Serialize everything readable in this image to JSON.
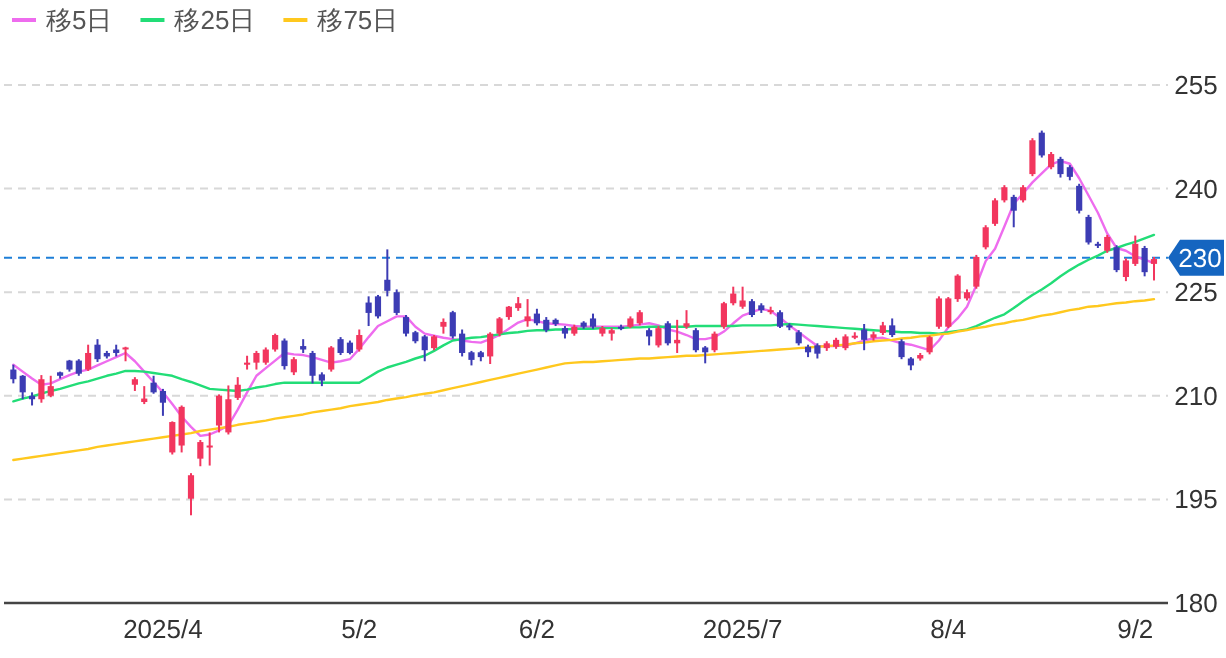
{
  "chart_data": {
    "type": "candlestick",
    "categories": [
      null,
      null,
      null,
      null,
      null,
      null,
      null,
      null,
      null,
      null,
      null,
      null,
      null,
      null,
      null,
      null,
      "2025/4",
      null,
      null,
      null,
      null,
      null,
      null,
      null,
      null,
      null,
      null,
      null,
      null,
      null,
      null,
      null,
      null,
      null,
      null,
      null,
      null,
      "5/2",
      null,
      null,
      null,
      null,
      null,
      null,
      null,
      null,
      null,
      null,
      null,
      null,
      null,
      null,
      null,
      null,
      null,
      null,
      "6/2",
      null,
      null,
      null,
      null,
      null,
      null,
      null,
      null,
      null,
      null,
      null,
      null,
      null,
      null,
      null,
      null,
      null,
      null,
      null,
      null,
      null,
      "2025/7",
      null,
      null,
      null,
      null,
      null,
      null,
      null,
      null,
      null,
      null,
      null,
      null,
      null,
      null,
      null,
      null,
      null,
      null,
      null,
      null,
      null,
      "8/4",
      null,
      null,
      null,
      null,
      null,
      null,
      null,
      null,
      null,
      null,
      null,
      null,
      null,
      null,
      null,
      null,
      null,
      null,
      null,
      "9/2",
      null,
      null
    ],
    "ohlc": [
      [
        213.8,
        214.5,
        211.8,
        212.4
      ],
      [
        212.9,
        213,
        209.5,
        210.5
      ],
      [
        210,
        210.5,
        208.6,
        209.5
      ],
      [
        209.5,
        213,
        209,
        212.4
      ],
      [
        210,
        212.9,
        209.8,
        211.4
      ],
      [
        213.4,
        213.5,
        212.5,
        212.9
      ],
      [
        215.1,
        215.2,
        213.5,
        213.8
      ],
      [
        215.1,
        215.3,
        212.9,
        213.2
      ],
      [
        213.8,
        217.4,
        213.6,
        216.2
      ],
      [
        217.4,
        218.2,
        214.9,
        215.3
      ],
      [
        216.2,
        216.5,
        215.4,
        215.7
      ],
      [
        216.7,
        217.4,
        215.7,
        216.2
      ],
      [
        216.9,
        217.1,
        215,
        217
      ],
      [
        211.6,
        212.7,
        210.7,
        212.4
      ],
      [
        209.1,
        211.4,
        208.8,
        209.6
      ],
      [
        211.9,
        212.9,
        210.3,
        210.5
      ],
      [
        210.7,
        211,
        207.1,
        209
      ],
      [
        201.8,
        206.3,
        201.5,
        206.2
      ],
      [
        202.8,
        208.6,
        201.8,
        208.4
      ],
      [
        195.1,
        198.8,
        192.7,
        198.5
      ],
      [
        200.9,
        203.6,
        199.8,
        203.3
      ],
      [
        202.7,
        204.7,
        199.9,
        202.8
      ],
      [
        205.7,
        210.2,
        204.7,
        210
      ],
      [
        204.7,
        211.5,
        204.4,
        209.5
      ],
      [
        209.7,
        212.7,
        209.4,
        211.6
      ],
      [
        214.5,
        215.8,
        213.8,
        214.8
      ],
      [
        214.8,
        216.5,
        213.8,
        216.2
      ],
      [
        214.8,
        217,
        214.5,
        216.7
      ],
      [
        216.7,
        219,
        216.4,
        218.8
      ],
      [
        218,
        218.3,
        213.8,
        214.3
      ],
      [
        213.4,
        215.6,
        213,
        215.3
      ],
      [
        217.2,
        218.2,
        216.2,
        216.7
      ],
      [
        216.2,
        216.5,
        211.8,
        212.9
      ],
      [
        213.1,
        213.4,
        211.4,
        212.2
      ],
      [
        213.8,
        217.2,
        213.5,
        217
      ],
      [
        218.2,
        218.5,
        215.9,
        216.2
      ],
      [
        217.7,
        218,
        216,
        216.2
      ],
      [
        216.7,
        219.6,
        216.4,
        218.8
      ],
      [
        223.5,
        224.4,
        220.1,
        222
      ],
      [
        224.4,
        224.6,
        221.2,
        221.5
      ],
      [
        226.8,
        231.2,
        224.4,
        225.2
      ],
      [
        225,
        225.4,
        221.7,
        222
      ],
      [
        221.4,
        221.7,
        218.6,
        219
      ],
      [
        219.2,
        219.4,
        217.6,
        217.9
      ],
      [
        218.6,
        218.8,
        215,
        216.6
      ],
      [
        216.9,
        218.8,
        216.6,
        218.6
      ],
      [
        220,
        221.2,
        219,
        220.7
      ],
      [
        222.1,
        222.3,
        218.3,
        218.6
      ],
      [
        219,
        219.6,
        215.7,
        216.2
      ],
      [
        216.3,
        216.5,
        214.4,
        215.2
      ],
      [
        216.3,
        216.5,
        215,
        215.6
      ],
      [
        215.7,
        219.2,
        214.6,
        219
      ],
      [
        219,
        221.4,
        218.6,
        221.2
      ],
      [
        221.4,
        223,
        221,
        222.9
      ],
      [
        222.7,
        224.3,
        222.3,
        223.4
      ],
      [
        220.8,
        224,
        220,
        221.5
      ],
      [
        221.9,
        222.6,
        220.2,
        220.5
      ],
      [
        221,
        221.4,
        219.2,
        219.5
      ],
      [
        221,
        221.2,
        220.1,
        220.4
      ],
      [
        219.8,
        220.1,
        218.3,
        219
      ],
      [
        219,
        220.3,
        218.7,
        220
      ],
      [
        220.6,
        220.8,
        219.7,
        220
      ],
      [
        221.2,
        221.9,
        219.7,
        220
      ],
      [
        219,
        220.1,
        218.6,
        219.8
      ],
      [
        219,
        219.8,
        218,
        219.5
      ],
      [
        220,
        220.3,
        219.5,
        219.8
      ],
      [
        220,
        221.5,
        219.8,
        221.2
      ],
      [
        220.5,
        222.4,
        220.2,
        222.1
      ],
      [
        219.5,
        219.8,
        217.3,
        218.6
      ],
      [
        217.3,
        220.1,
        217,
        219.8
      ],
      [
        220.5,
        220.8,
        217.3,
        217.6
      ],
      [
        217.6,
        221,
        216.2,
        218.1
      ],
      [
        220,
        222.4,
        219.7,
        220.5
      ],
      [
        219.5,
        219.8,
        216.3,
        216.6
      ],
      [
        217,
        217.2,
        214.7,
        216.3
      ],
      [
        216.6,
        219.3,
        216.3,
        219
      ],
      [
        220,
        223.6,
        219.7,
        223.4
      ],
      [
        223.4,
        225.8,
        223.1,
        224.8
      ],
      [
        222.9,
        225.8,
        222.6,
        223.8
      ],
      [
        223.7,
        224,
        221.4,
        221.7
      ],
      [
        223.1,
        223.4,
        222,
        222.4
      ],
      [
        222.3,
        222.9,
        221.8,
        222.4
      ],
      [
        222.1,
        222.4,
        219.8,
        220
      ],
      [
        220.2,
        220.5,
        219.5,
        219.9
      ],
      [
        219.2,
        219.5,
        217.3,
        217.6
      ],
      [
        217.1,
        217.4,
        215.6,
        216.3
      ],
      [
        217.3,
        217.6,
        215.4,
        216.1
      ],
      [
        216.9,
        217.9,
        216.5,
        217.6
      ],
      [
        217.1,
        218.4,
        216.8,
        218.1
      ],
      [
        216.9,
        218.9,
        216.6,
        218.6
      ],
      [
        218.5,
        219.2,
        218.2,
        218.7
      ],
      [
        219.6,
        220.4,
        216.6,
        218.1
      ],
      [
        218.4,
        219.3,
        218,
        218.9
      ],
      [
        219.1,
        220.7,
        218.8,
        220.2
      ],
      [
        220.2,
        221.2,
        218.5,
        218.8
      ],
      [
        217.9,
        218.2,
        215.3,
        215.6
      ],
      [
        215.4,
        215.6,
        213.7,
        214.4
      ],
      [
        215.4,
        216.2,
        215.1,
        215.9
      ],
      [
        216.3,
        218.7,
        216,
        218.5
      ],
      [
        220,
        224.4,
        219.7,
        224.1
      ],
      [
        220,
        224.3,
        219.8,
        224.1
      ],
      [
        224,
        227.6,
        223.6,
        227.4
      ],
      [
        224.1,
        225.4,
        223.8,
        225
      ],
      [
        225.8,
        230.4,
        225.5,
        230.1
      ],
      [
        231.5,
        234.7,
        231.2,
        234.4
      ],
      [
        234.9,
        238.6,
        234.6,
        238.3
      ],
      [
        238.3,
        240.5,
        238,
        240.2
      ],
      [
        238.8,
        239.1,
        234.4,
        236.8
      ],
      [
        238.3,
        240.5,
        238,
        240.2
      ],
      [
        242.1,
        247.3,
        241.8,
        247
      ],
      [
        248.1,
        248.4,
        244.5,
        244.8
      ],
      [
        243.1,
        245.3,
        242.8,
        245
      ],
      [
        244.3,
        244.6,
        241.6,
        242.1
      ],
      [
        243.1,
        243.4,
        241.2,
        241.7
      ],
      [
        240.4,
        240.7,
        236.4,
        236.8
      ],
      [
        235.9,
        236.2,
        231.9,
        232.2
      ],
      [
        232,
        232.3,
        231.4,
        231.8
      ],
      [
        231,
        233.3,
        230.7,
        233
      ],
      [
        231.5,
        231.8,
        227.9,
        228.2
      ],
      [
        227.2,
        229.9,
        226.6,
        229.6
      ],
      [
        229.1,
        233.2,
        228.8,
        232
      ],
      [
        231.4,
        231.7,
        227.3,
        227.9
      ],
      [
        229.1,
        230.1,
        226.7,
        229.8
      ]
    ],
    "series": [
      {
        "name": "移5日",
        "type": "line",
        "color": "#ee6cee",
        "values": [
          214.5,
          213.5,
          212.5,
          211.6,
          211.8,
          212.4,
          213,
          213.5,
          213.8,
          214.4,
          215,
          215.6,
          216.2,
          215,
          213.5,
          212,
          210.5,
          208.8,
          207,
          205.5,
          204.2,
          204.4,
          205,
          205.7,
          208,
          210.5,
          212.9,
          214,
          215.1,
          216.2,
          216,
          215.9,
          215.6,
          215.2,
          214.8,
          215,
          215.3,
          216.8,
          218.5,
          220.1,
          220.8,
          221.5,
          221.5,
          220,
          219,
          218.7,
          218.4,
          218.2,
          218,
          217.8,
          217.7,
          218.2,
          218.8,
          219.7,
          220.6,
          221.1,
          220.8,
          220.5,
          220.4,
          220.3,
          220.1,
          220,
          220,
          220,
          220,
          220,
          220.1,
          220.3,
          220.5,
          220.2,
          219.6,
          219.3,
          218.8,
          218.2,
          218.2,
          218.5,
          219.3,
          220.5,
          221.6,
          222.1,
          222.6,
          222.3,
          221.3,
          220.2,
          219.2,
          218.2,
          217.2,
          217.2,
          217.2,
          217.3,
          217.6,
          218,
          218.3,
          218.4,
          218,
          217.6,
          217.4,
          217,
          216.6,
          218,
          219.9,
          221.2,
          222.9,
          226,
          229.5,
          231.3,
          234.5,
          237.8,
          239.3,
          240.9,
          242.2,
          243.5,
          244,
          243.6,
          241.5,
          239,
          236.5,
          233.5,
          231.4,
          231,
          230.2,
          229.7,
          229.2
        ]
      },
      {
        "name": "移25日",
        "type": "line",
        "color": "#22dd77",
        "values": [
          209.2,
          209.6,
          209.9,
          210.3,
          210.7,
          211,
          211.4,
          211.8,
          212.1,
          212.5,
          212.9,
          213.2,
          213.6,
          213.6,
          213.5,
          213.3,
          213.1,
          212.9,
          212.4,
          212,
          211.5,
          211,
          210.9,
          210.8,
          210.7,
          210.9,
          211.2,
          211.4,
          211.7,
          211.9,
          211.9,
          211.9,
          211.9,
          211.9,
          211.9,
          211.9,
          211.9,
          211.9,
          212.7,
          213.5,
          214.1,
          214.5,
          214.9,
          215.4,
          215.8,
          216.5,
          217.3,
          218,
          218.2,
          218.4,
          218.5,
          218.7,
          218.9,
          219.1,
          219.2,
          219.4,
          219.5,
          219.5,
          219.6,
          219.6,
          219.7,
          219.7,
          219.7,
          219.8,
          219.8,
          219.8,
          219.9,
          219.9,
          220,
          220,
          220,
          220,
          220,
          220.1,
          220.1,
          220.1,
          220.1,
          220.1,
          220.2,
          220.2,
          220.2,
          220.2,
          220.3,
          220.4,
          220.3,
          220.2,
          220.1,
          220,
          219.9,
          219.8,
          219.7,
          219.6,
          219.5,
          219.4,
          219.3,
          219.2,
          219.2,
          219.1,
          219.1,
          219,
          219.2,
          219.4,
          219.6,
          220.1,
          220.7,
          221.3,
          221.8,
          222.7,
          223.7,
          224.6,
          225.4,
          226.3,
          227.3,
          228.2,
          229,
          229.7,
          230.3,
          231,
          231.4,
          231.9,
          232.3,
          232.8,
          233.3
        ]
      },
      {
        "name": "移75日",
        "type": "line",
        "color": "#ffc81e",
        "values": [
          200.7,
          200.9,
          201.1,
          201.3,
          201.5,
          201.7,
          201.9,
          202.1,
          202.3,
          202.6,
          202.8,
          203,
          203.2,
          203.4,
          203.6,
          203.8,
          204,
          204.2,
          204.4,
          204.6,
          204.9,
          205.1,
          205.3,
          205.5,
          205.8,
          206,
          206.2,
          206.4,
          206.7,
          206.9,
          207.1,
          207.3,
          207.6,
          207.8,
          208,
          208.2,
          208.5,
          208.7,
          208.9,
          209.1,
          209.4,
          209.6,
          209.8,
          210.1,
          210.3,
          210.5,
          210.8,
          211.1,
          211.4,
          211.7,
          212,
          212.3,
          212.6,
          212.9,
          213.2,
          213.5,
          213.8,
          214.1,
          214.4,
          214.7,
          214.8,
          214.9,
          214.9,
          215,
          215.1,
          215.2,
          215.3,
          215.4,
          215.4,
          215.5,
          215.6,
          215.7,
          215.8,
          215.8,
          215.9,
          216,
          216.1,
          216.2,
          216.3,
          216.4,
          216.5,
          216.6,
          216.7,
          216.8,
          216.9,
          217,
          217.1,
          217.2,
          217.3,
          217.4,
          217.6,
          217.7,
          217.9,
          218,
          218.1,
          218.3,
          218.4,
          218.6,
          218.7,
          218.9,
          219,
          219.3,
          219.5,
          219.8,
          220,
          220.3,
          220.5,
          220.8,
          221,
          221.3,
          221.6,
          221.8,
          222.1,
          222.4,
          222.6,
          222.9,
          223,
          223.2,
          223.4,
          223.5,
          223.7,
          223.8,
          224
        ]
      }
    ],
    "ylim": [
      180,
      255
    ],
    "yticks": [
      180,
      195,
      210,
      225,
      240,
      255
    ],
    "grid": "y",
    "legend": "top left",
    "ref_lines": [
      {
        "axis": "y",
        "value": 230,
        "label": "230",
        "color": "#1e7fd8",
        "line_style": "dashed"
      }
    ]
  }
}
